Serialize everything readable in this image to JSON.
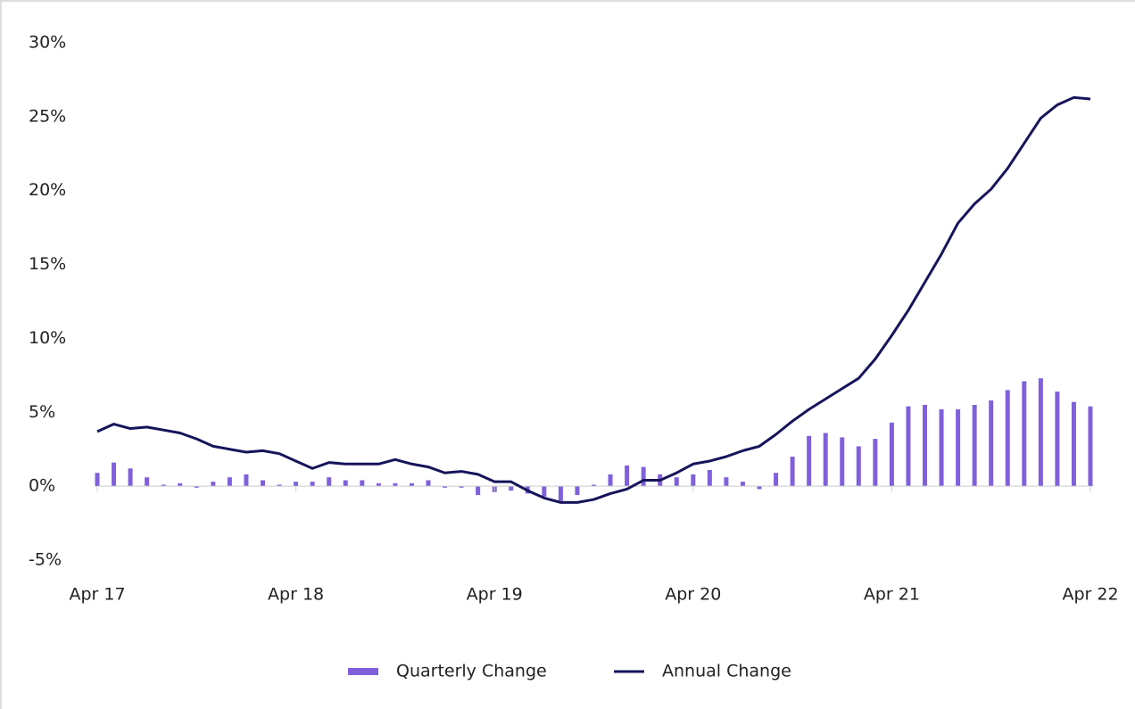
{
  "chart_data": {
    "type": "bar-line",
    "categories": [
      "Apr 17",
      null,
      null,
      null,
      null,
      null,
      null,
      null,
      null,
      null,
      null,
      null,
      "Apr 18",
      null,
      null,
      null,
      null,
      null,
      null,
      null,
      null,
      null,
      null,
      null,
      "Apr 19",
      null,
      null,
      null,
      null,
      null,
      null,
      null,
      null,
      null,
      null,
      null,
      "Apr 20",
      null,
      null,
      null,
      null,
      null,
      null,
      null,
      null,
      null,
      null,
      null,
      "Apr 21",
      null,
      null,
      null,
      null,
      null,
      null,
      null,
      null,
      null,
      null,
      null,
      "Apr 22"
    ],
    "series": [
      {
        "name": "Quarterly Change",
        "type": "bar",
        "color": "#8060dc",
        "values": [
          0.9,
          1.6,
          1.2,
          0.6,
          0.1,
          0.2,
          -0.1,
          0.3,
          0.6,
          0.8,
          0.4,
          0.1,
          0.3,
          0.3,
          0.6,
          0.4,
          0.4,
          0.2,
          0.2,
          0.2,
          0.4,
          -0.1,
          -0.1,
          -0.6,
          -0.4,
          -0.3,
          -0.5,
          -0.7,
          -1.0,
          -0.6,
          0.1,
          0.8,
          1.4,
          1.3,
          0.8,
          0.6,
          0.8,
          1.1,
          0.6,
          0.3,
          -0.2,
          0.9,
          2.0,
          3.4,
          3.6,
          3.3,
          2.7,
          3.2,
          4.3,
          5.4,
          5.5,
          5.2,
          5.2,
          5.5,
          5.8,
          6.5,
          7.1,
          7.3,
          6.4,
          5.7,
          5.4
        ]
      },
      {
        "name": "Annual Change",
        "type": "line",
        "color": "#16145a",
        "values": [
          3.7,
          4.2,
          3.9,
          4.0,
          3.8,
          3.6,
          3.2,
          2.7,
          2.5,
          2.3,
          2.4,
          2.2,
          1.7,
          1.2,
          1.6,
          1.5,
          1.5,
          1.5,
          1.8,
          1.5,
          1.3,
          0.9,
          1.0,
          0.8,
          0.3,
          0.3,
          -0.3,
          -0.8,
          -1.1,
          -1.1,
          -0.9,
          -0.5,
          -0.2,
          0.4,
          0.4,
          0.9,
          1.5,
          1.7,
          2.0,
          2.4,
          2.7,
          3.5,
          4.4,
          5.2,
          5.9,
          6.6,
          7.3,
          8.6,
          10.2,
          11.9,
          13.8,
          15.7,
          17.8,
          19.1,
          20.1,
          21.5,
          23.2,
          24.9,
          25.8,
          26.3,
          26.2
        ]
      }
    ],
    "ylim": [
      -5,
      30
    ],
    "yticks": [
      {
        "value": -5,
        "label": "-5%"
      },
      {
        "value": 0,
        "label": "0%"
      },
      {
        "value": 5,
        "label": "5%"
      },
      {
        "value": 10,
        "label": "10%"
      },
      {
        "value": 15,
        "label": "15%"
      },
      {
        "value": 20,
        "label": "20%"
      },
      {
        "value": 25,
        "label": "25%"
      },
      {
        "value": 30,
        "label": "30%"
      }
    ],
    "grid": false,
    "legend": "bottom"
  }
}
